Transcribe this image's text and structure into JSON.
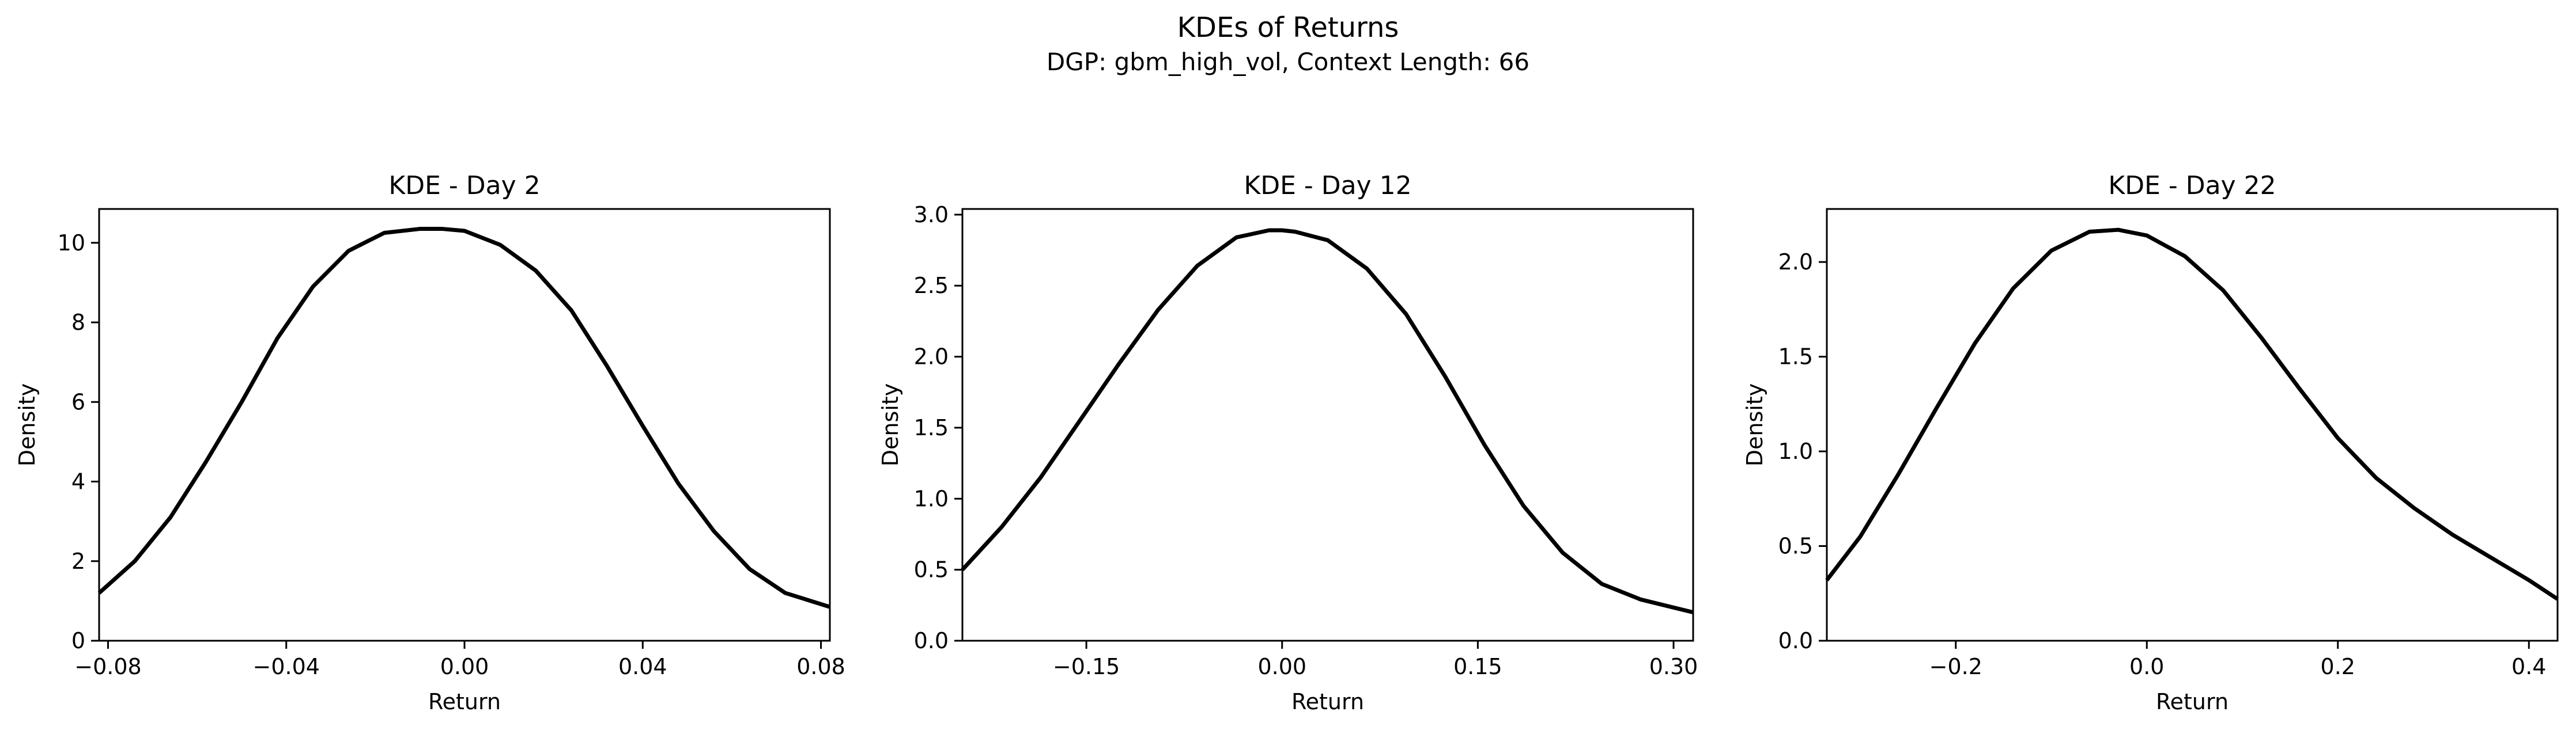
{
  "figure": {
    "title": "KDEs of Returns",
    "subtitle": "DGP: gbm_high_vol, Context Length: 66"
  },
  "chart_data": [
    {
      "type": "line",
      "title": "KDE - Day 2",
      "xlabel": "Return",
      "ylabel": "Density",
      "xlim": [
        -0.082,
        0.082
      ],
      "ylim": [
        0,
        10.85
      ],
      "xticks": [
        -0.08,
        -0.04,
        0.0,
        0.04,
        0.08
      ],
      "xtick_labels": [
        "−0.08",
        "−0.04",
        "0.00",
        "0.04",
        "0.08"
      ],
      "yticks": [
        0,
        2,
        4,
        6,
        8,
        10
      ],
      "ytick_labels": [
        "0",
        "2",
        "4",
        "6",
        "8",
        "10"
      ],
      "grid": false,
      "color": "#000000",
      "series": [
        {
          "x": [
            -0.082,
            -0.074,
            -0.066,
            -0.058,
            -0.05,
            -0.042,
            -0.034,
            -0.026,
            -0.018,
            -0.01,
            -0.005,
            0.0,
            0.008,
            0.016,
            0.024,
            0.032,
            0.04,
            0.048,
            0.056,
            0.064,
            0.072,
            0.082
          ],
          "y": [
            1.2,
            2.0,
            3.1,
            4.5,
            6.0,
            7.6,
            8.9,
            9.8,
            10.25,
            10.35,
            10.35,
            10.3,
            9.95,
            9.3,
            8.3,
            6.9,
            5.4,
            3.95,
            2.75,
            1.8,
            1.2,
            0.85
          ]
        }
      ]
    },
    {
      "type": "line",
      "title": "KDE - Day 12",
      "xlabel": "Return",
      "ylabel": "Density",
      "xlim": [
        -0.245,
        0.315
      ],
      "ylim": [
        0,
        3.04
      ],
      "xticks": [
        -0.15,
        0.0,
        0.15,
        0.3
      ],
      "xtick_labels": [
        "−0.15",
        "0.00",
        "0.15",
        "0.30"
      ],
      "yticks": [
        0.0,
        0.5,
        1.0,
        1.5,
        2.0,
        2.5,
        3.0
      ],
      "ytick_labels": [
        "0.0",
        "0.5",
        "1.0",
        "1.5",
        "2.0",
        "2.5",
        "3.0"
      ],
      "grid": false,
      "color": "#000000",
      "series": [
        {
          "x": [
            -0.245,
            -0.215,
            -0.185,
            -0.155,
            -0.125,
            -0.095,
            -0.065,
            -0.035,
            -0.01,
            0.0,
            0.01,
            0.035,
            0.065,
            0.095,
            0.125,
            0.155,
            0.185,
            0.215,
            0.245,
            0.275,
            0.315
          ],
          "y": [
            0.5,
            0.8,
            1.15,
            1.55,
            1.95,
            2.33,
            2.64,
            2.84,
            2.89,
            2.89,
            2.88,
            2.82,
            2.62,
            2.3,
            1.86,
            1.38,
            0.95,
            0.62,
            0.4,
            0.29,
            0.2
          ]
        }
      ]
    },
    {
      "type": "line",
      "title": "KDE - Day 22",
      "xlabel": "Return",
      "ylabel": "Density",
      "xlim": [
        -0.335,
        0.43
      ],
      "ylim": [
        0,
        2.28
      ],
      "xticks": [
        -0.2,
        0.0,
        0.2,
        0.4
      ],
      "xtick_labels": [
        "−0.2",
        "0.0",
        "0.2",
        "0.4"
      ],
      "yticks": [
        0.0,
        0.5,
        1.0,
        1.5,
        2.0
      ],
      "ytick_labels": [
        "0.0",
        "0.5",
        "1.0",
        "1.5",
        "2.0"
      ],
      "grid": false,
      "color": "#000000",
      "series": [
        {
          "x": [
            -0.335,
            -0.3,
            -0.26,
            -0.22,
            -0.18,
            -0.14,
            -0.1,
            -0.06,
            -0.03,
            0.0,
            0.04,
            0.08,
            0.12,
            0.16,
            0.2,
            0.24,
            0.28,
            0.32,
            0.36,
            0.4,
            0.43
          ],
          "y": [
            0.32,
            0.55,
            0.88,
            1.23,
            1.57,
            1.86,
            2.06,
            2.16,
            2.17,
            2.14,
            2.03,
            1.85,
            1.6,
            1.33,
            1.07,
            0.86,
            0.7,
            0.56,
            0.44,
            0.32,
            0.22
          ]
        }
      ]
    }
  ]
}
